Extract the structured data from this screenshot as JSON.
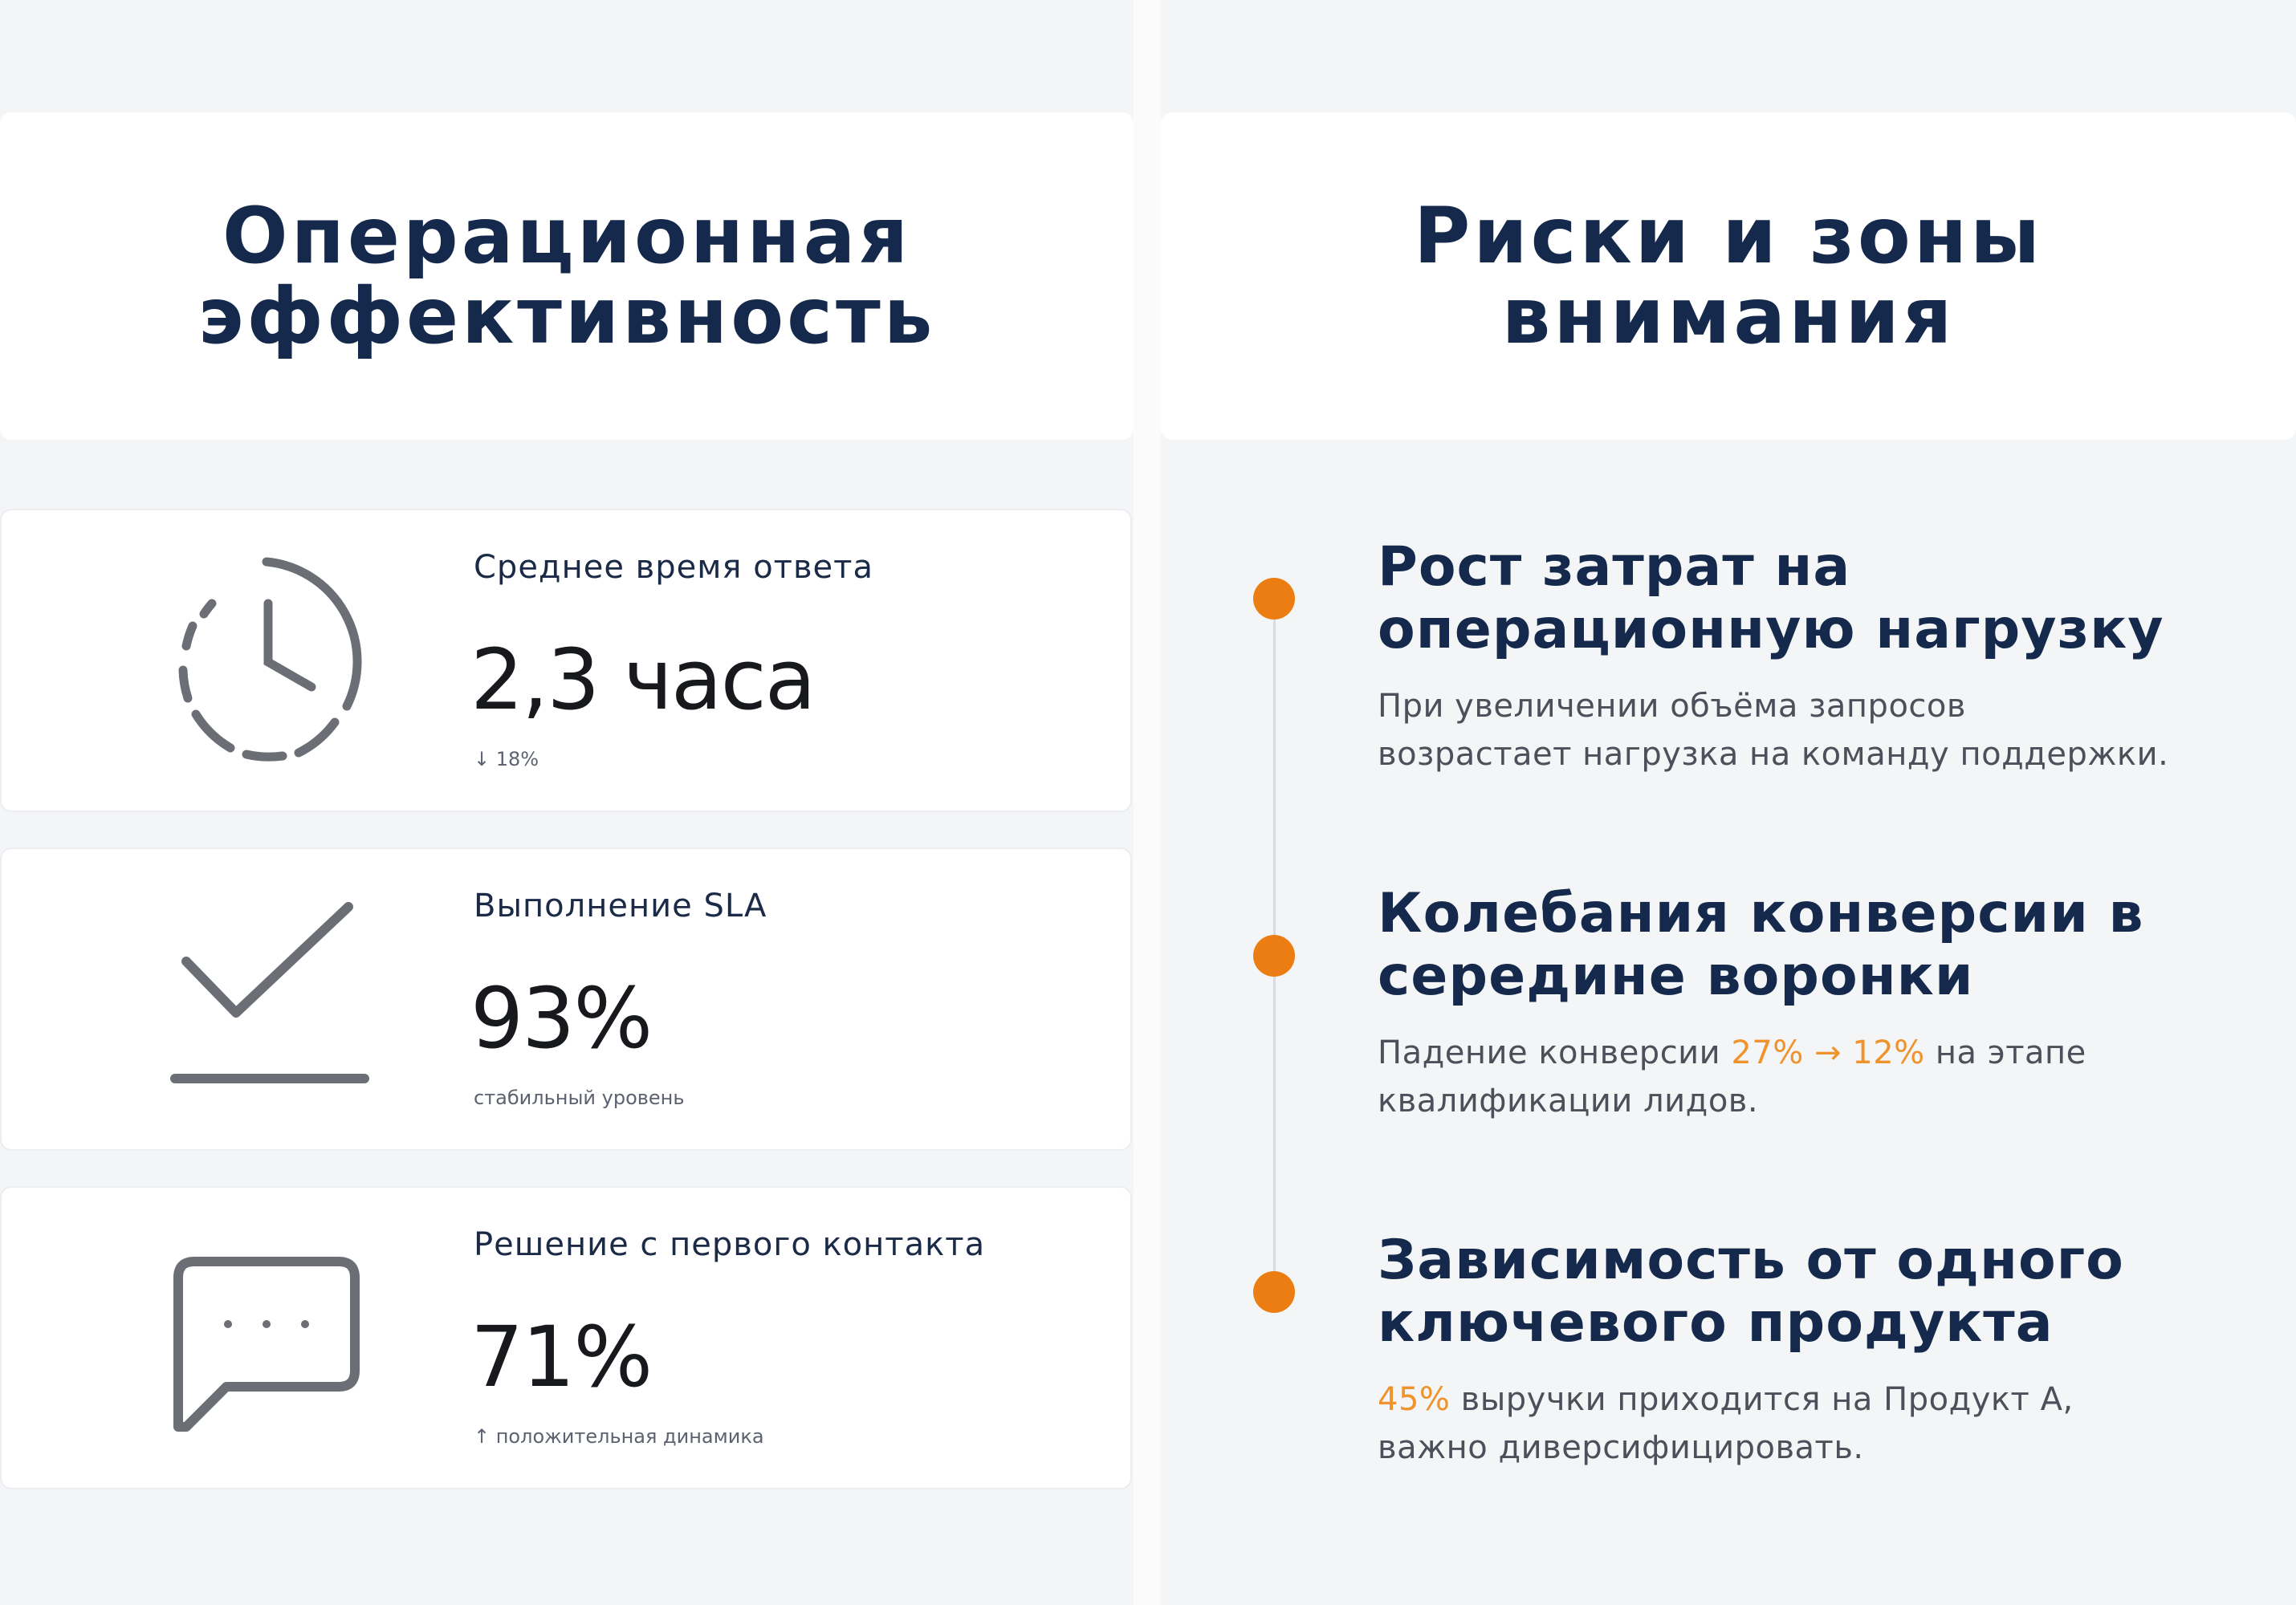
{
  "left": {
    "title_line1": "Операционная",
    "title_line2": "эффективность",
    "metrics": [
      {
        "icon": "clock-icon",
        "label": "Среднее время ответа",
        "value": "2,3 часа",
        "note": "↓ 18%"
      },
      {
        "icon": "checkmark-icon",
        "label": "Выполнение SLA",
        "value": "93%",
        "note": "стабильный уровень"
      },
      {
        "icon": "chat-bubble-icon",
        "label": "Решение с первого контакта",
        "value": "71%",
        "note": "↑ положительная динамика"
      }
    ]
  },
  "right": {
    "title_line1": "Риски и зоны",
    "title_line2": "внимания",
    "risks": [
      {
        "title_line1": "Рост затрат на",
        "title_line2": "операционную нагрузку",
        "text_line1": "При увеличении объёма запросов",
        "text_line2": "возрастает нагрузка на команду поддержки."
      },
      {
        "title_line1": "Колебания конверсии в",
        "title_line2": "середине воронки",
        "text_prefix": "Падение конверсии ",
        "text_highlight": "27% → 12%",
        "text_suffix": " на этапе",
        "text_line2": "квалификации лидов."
      },
      {
        "title_line1": "Зависимость от одного",
        "title_line2": "ключевого продукта",
        "text_highlight": "45%",
        "text_suffix": " выручки приходится на Продукт А,",
        "text_line2": "важно диверсифицировать."
      }
    ]
  },
  "colors": {
    "heading": "#14294b",
    "accent": "#eb7d12",
    "highlight": "#ef932c",
    "icon": "#6b6e75"
  }
}
